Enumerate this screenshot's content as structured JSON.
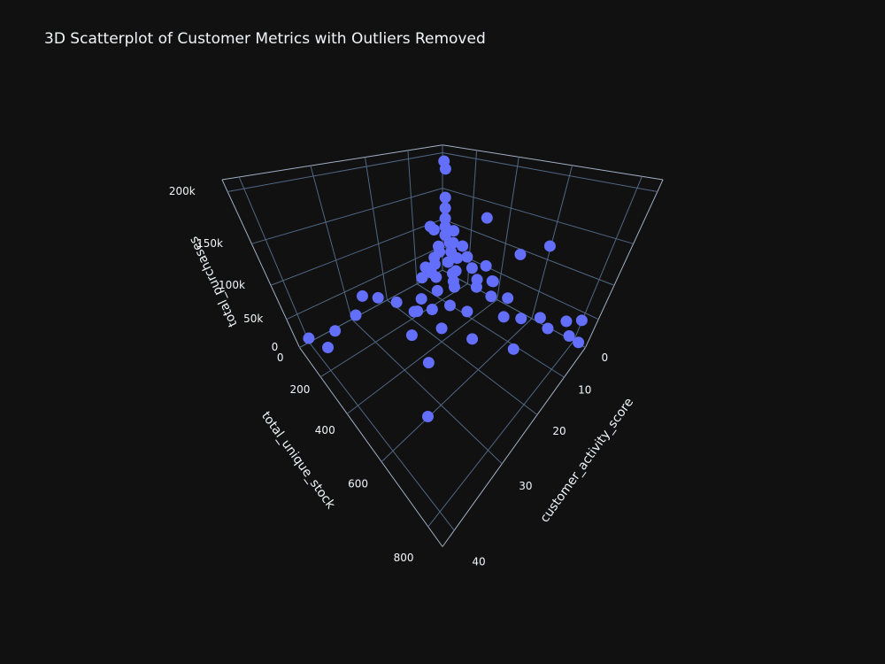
{
  "chart_data": {
    "type": "scatter3d",
    "title": "3D Scatterplot of Customer Metrics with Outliers Removed",
    "xlabel": "customer_activity_score",
    "ylabel": "total_unique_stock",
    "zlabel": "total_purchases",
    "color": "#636efa",
    "xlim": [
      0,
      42
    ],
    "xticks": [
      0,
      10,
      20,
      30,
      40
    ],
    "ylim": [
      0,
      850
    ],
    "yticks": [
      0,
      200,
      400,
      600,
      800
    ],
    "zlim": [
      0,
      210000
    ],
    "zticks": [
      0,
      {
        "value": 50000,
        "label": "50k"
      },
      {
        "value": 100000,
        "label": "100k"
      },
      {
        "value": 150000,
        "label": "150k"
      },
      {
        "value": 200000,
        "label": "200k"
      }
    ],
    "grid": true,
    "x": [
      0.5,
      0.5,
      1,
      1.5,
      2,
      3,
      2,
      4,
      5,
      3,
      6,
      4,
      7,
      8,
      5,
      10,
      9,
      6,
      12,
      3,
      11,
      14,
      7,
      15,
      4,
      18,
      9,
      20,
      6,
      2,
      3,
      1,
      0.5,
      22,
      25,
      28,
      30,
      35,
      40,
      38,
      33,
      26,
      24,
      16,
      12,
      1,
      0.5,
      2,
      0.5,
      1,
      8,
      5,
      3,
      6,
      10,
      13,
      2,
      4,
      7,
      9,
      1,
      3,
      5,
      8,
      16,
      19,
      12,
      21
    ],
    "y": [
      20,
      30,
      40,
      50,
      60,
      80,
      120,
      100,
      150,
      200,
      180,
      250,
      120,
      200,
      300,
      150,
      250,
      350,
      200,
      400,
      300,
      250,
      450,
      350,
      500,
      300,
      550,
      400,
      600,
      650,
      700,
      780,
      820,
      150,
      100,
      80,
      60,
      50,
      30,
      100,
      600,
      450,
      300,
      500,
      650,
      300,
      600,
      500,
      800,
      750,
      80,
      40,
      30,
      60,
      80,
      120,
      150,
      180,
      220,
      100,
      100,
      350,
      420,
      380,
      180,
      220,
      400,
      250
    ],
    "z": [
      190000,
      180000,
      140000,
      125000,
      110000,
      100000,
      95000,
      90000,
      85000,
      80000,
      75000,
      70000,
      70000,
      65000,
      60000,
      60000,
      55000,
      50000,
      50000,
      45000,
      45000,
      40000,
      40000,
      35000,
      35000,
      30000,
      30000,
      25000,
      25000,
      20000,
      15000,
      10000,
      5000,
      30000,
      40000,
      50000,
      20000,
      10000,
      15000,
      5000,
      2000,
      5000,
      8000,
      10000,
      8000,
      130000,
      120000,
      100000,
      40000,
      30000,
      110000,
      95000,
      60000,
      50000,
      45000,
      40000,
      50000,
      35000,
      30000,
      35000,
      70000,
      65000,
      55000,
      48000,
      20000,
      15000,
      22000,
      28000
    ]
  }
}
